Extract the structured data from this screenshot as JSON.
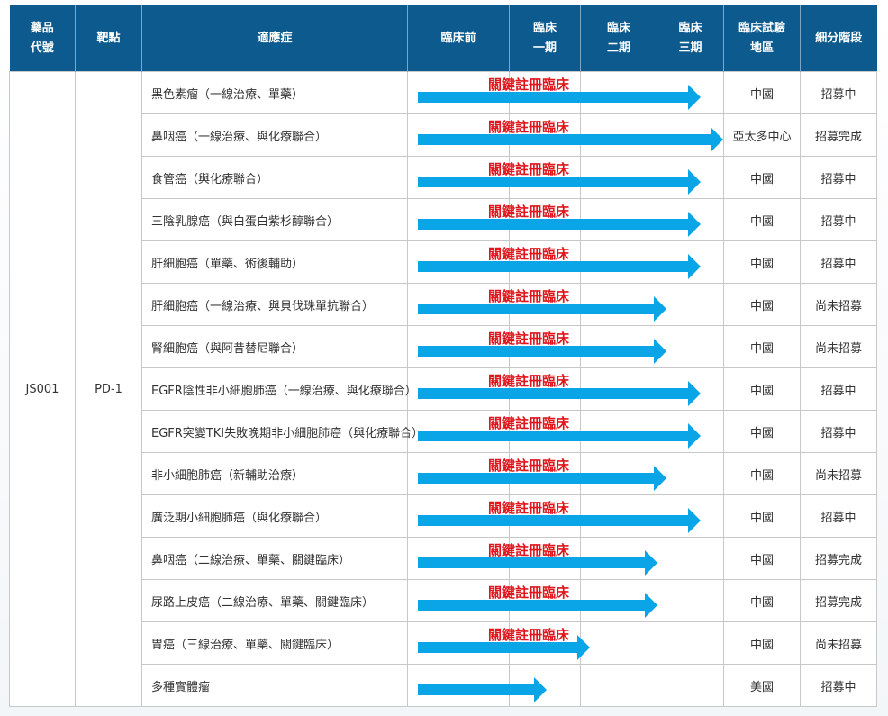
{
  "colors": {
    "header_bg": "#0c5a8e",
    "arrow": "#0aa5e6",
    "label": "#e0161c"
  },
  "headers": {
    "drug_code": [
      "藥品",
      "代號"
    ],
    "target": "靶點",
    "indication": "適應症",
    "preclinical": "臨床前",
    "phase1": [
      "臨床",
      "一期"
    ],
    "phase2": [
      "臨床",
      "二期"
    ],
    "phase3": [
      "臨床",
      "三期"
    ],
    "region": [
      "臨床試驗",
      "地區"
    ],
    "status": "細分階段"
  },
  "drug_code": "JS001",
  "target": "PD-1",
  "pivotal_label": "關鍵註冊臨床",
  "rows": [
    {
      "indication": "黑色素瘤（一線治療、單藥）",
      "region": "中國",
      "status": "招募中",
      "stage": "phase3",
      "pivotal": true
    },
    {
      "indication": "鼻咽癌（一線治療、與化療聯合）",
      "region": "亞太多中心",
      "status": "招募完成",
      "stage": "phase3-end",
      "pivotal": true
    },
    {
      "indication": "食管癌（與化療聯合）",
      "region": "中國",
      "status": "招募中",
      "stage": "phase3",
      "pivotal": true
    },
    {
      "indication": "三陰乳腺癌（與白蛋白紫杉醇聯合）",
      "region": "中國",
      "status": "招募中",
      "stage": "phase3",
      "pivotal": true
    },
    {
      "indication": "肝細胞癌（單藥、術後輔助）",
      "region": "中國",
      "status": "招募中",
      "stage": "phase3",
      "pivotal": true
    },
    {
      "indication": "肝細胞癌（一線治療、與貝伐珠單抗聯合）",
      "region": "中國",
      "status": "尚未招募",
      "stage": "phase3-start",
      "pivotal": true
    },
    {
      "indication": "腎細胞癌（與阿昔替尼聯合）",
      "region": "中國",
      "status": "尚未招募",
      "stage": "phase3-start",
      "pivotal": true
    },
    {
      "indication": "EGFR陰性非小細胞肺癌（一線治療、與化療聯合）",
      "region": "中國",
      "status": "招募中",
      "stage": "phase3",
      "pivotal": true
    },
    {
      "indication": "EGFR突變TKI失敗晚期非小細胞肺癌（與化療聯合）",
      "region": "中國",
      "status": "招募中",
      "stage": "phase3",
      "pivotal": true
    },
    {
      "indication": "非小細胞肺癌（新輔助治療）",
      "region": "中國",
      "status": "尚未招募",
      "stage": "phase3-start",
      "pivotal": true
    },
    {
      "indication": "廣泛期小細胞肺癌（與化療聯合）",
      "region": "中國",
      "status": "招募中",
      "stage": "phase3",
      "pivotal": true
    },
    {
      "indication": "鼻咽癌（二線治療、單藥、關鍵臨床）",
      "region": "中國",
      "status": "招募完成",
      "stage": "phase2-end",
      "pivotal": true
    },
    {
      "indication": "尿路上皮癌（二線治療、單藥、關鍵臨床）",
      "region": "中國",
      "status": "招募完成",
      "stage": "phase2-end",
      "pivotal": true
    },
    {
      "indication": "胃癌（三線治療、單藥、關鍵臨床）",
      "region": "中國",
      "status": "尚未招募",
      "stage": "phase2",
      "pivotal": true
    },
    {
      "indication": "多種實體瘤",
      "region": "美國",
      "status": "招募中",
      "stage": "phase1",
      "pivotal": false
    }
  ]
}
